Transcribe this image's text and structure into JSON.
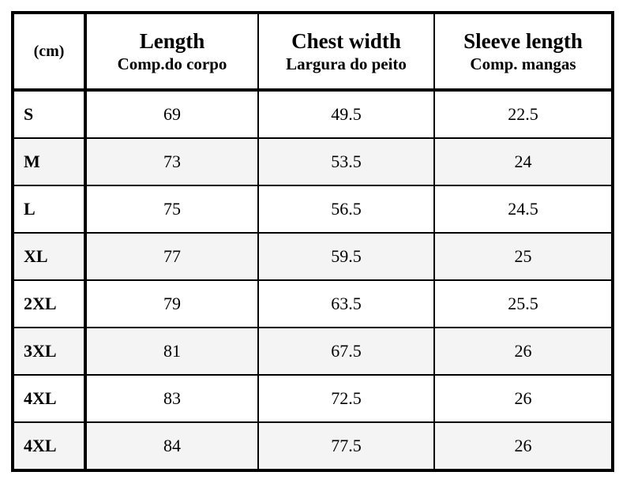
{
  "table": {
    "header": [
      "(cm)",
      {
        "title": "Length",
        "subtitle": "Comp.do corpo"
      },
      {
        "title": "Chest width",
        "subtitle": "Largura do peito"
      },
      {
        "title": "Sleeve length",
        "subtitle": "Comp. mangas"
      }
    ],
    "rows": [
      [
        "S",
        69,
        49.5,
        22.5
      ],
      [
        "M",
        73,
        53.5,
        24
      ],
      [
        "L",
        75,
        56.5,
        24.5
      ],
      [
        "XL",
        77,
        59.5,
        25
      ],
      [
        "2XL",
        79,
        63.5,
        25.5
      ],
      [
        "3XL",
        81,
        67.5,
        26
      ],
      [
        "4XL",
        83,
        72.5,
        26
      ],
      [
        "4XL",
        84,
        77.5,
        26
      ]
    ]
  }
}
